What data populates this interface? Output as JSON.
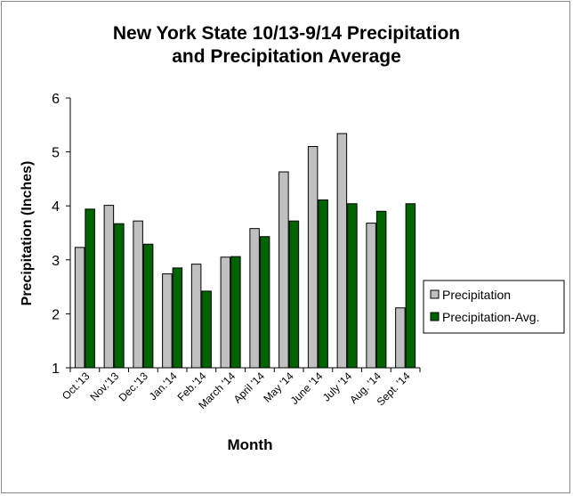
{
  "chart_data": {
    "type": "bar",
    "title_line1": "New York State 10/13-9/14 Precipitation",
    "title_line2": "and Precipitation Average",
    "xlabel": "Month",
    "ylabel": "Precipitation (Inches)",
    "ylim": [
      1,
      6
    ],
    "yticks": [
      "1",
      "2",
      "3",
      "4",
      "5",
      "6"
    ],
    "categories": [
      "Oct.'13",
      "Nov.'13",
      "Dec.'13",
      "Jan.'14",
      "Feb.'14",
      "March '14",
      "April '14",
      "May '14",
      "June '14",
      "July '14",
      "Aug. '14",
      "Sept. '14"
    ],
    "series": [
      {
        "name": "Precipitation",
        "color": "#c0c0c0",
        "values": [
          3.23,
          4.01,
          3.72,
          2.74,
          2.92,
          3.05,
          3.58,
          4.63,
          5.1,
          5.34,
          3.68,
          2.11
        ]
      },
      {
        "name": "Precipitation-Avg.",
        "color": "#006400",
        "values": [
          3.94,
          3.67,
          3.29,
          2.85,
          2.42,
          3.06,
          3.43,
          3.72,
          4.11,
          4.04,
          3.9,
          4.04
        ]
      }
    ],
    "grid": false,
    "legend_position": "right"
  }
}
